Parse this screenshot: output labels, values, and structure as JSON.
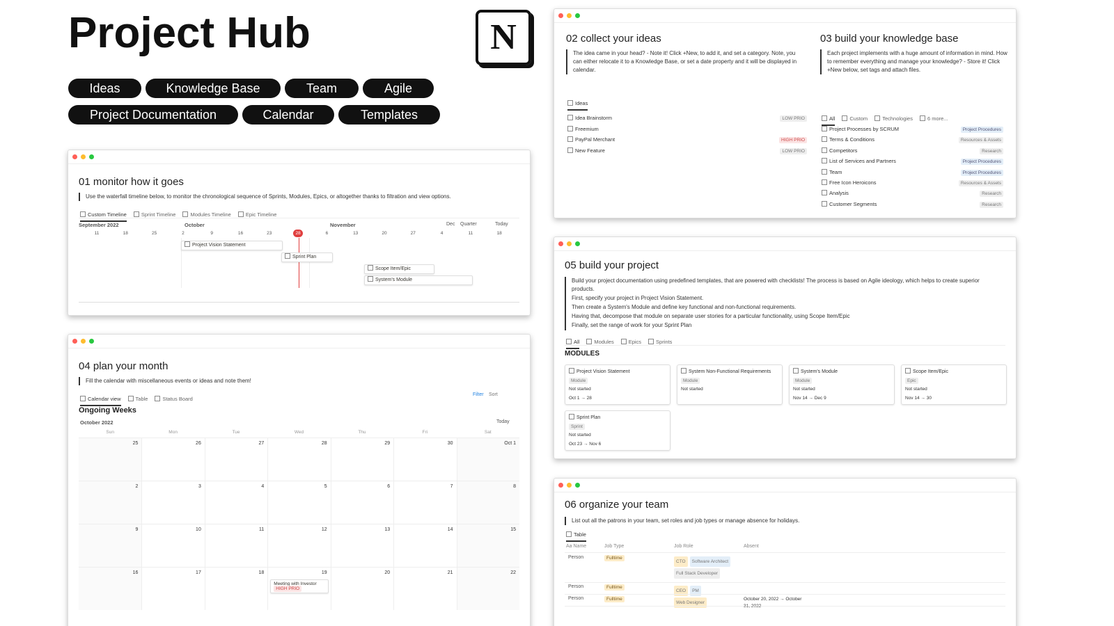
{
  "header": {
    "title": "Project Hub",
    "logo": "N",
    "nav": [
      "Ideas",
      "Knowledge Base",
      "Team",
      "Agile",
      "Project Documentation",
      "Calendar",
      "Templates"
    ]
  },
  "monitor": {
    "title": "01 monitor how it goes",
    "description": "Use the waterfall timeline below, to monitor the chronological sequence of Sprints, Modules, Epics, or altogether thanks to filtration and view options.",
    "tabs": [
      "Custom Timeline",
      "Sprint Timeline",
      "Modules Timeline",
      "Epic Timeline"
    ],
    "months": [
      "September 2022",
      "October",
      "November"
    ],
    "controls": [
      "Dec",
      "Quarter",
      "Today"
    ],
    "days": [
      "11",
      "18",
      "25",
      "2",
      "9",
      "16",
      "23",
      "28",
      "6",
      "13",
      "20",
      "27",
      "4",
      "11",
      "18"
    ],
    "items": [
      "Project Vision Statement",
      "Sprint Plan",
      "Scope Item/Epic",
      "System's Module"
    ]
  },
  "ideas": {
    "title": "02 collect your ideas",
    "description": "The idea came in your head? - Note it! Click +New, to add it, and set a category. Note, you can either relocate it to a Knowledge Base, or set a date property and it will be displayed in calendar.",
    "view": "Ideas",
    "rows": [
      {
        "name": "Idea Brainstorm",
        "tag": "LOW PRIO"
      },
      {
        "name": "Freemium"
      },
      {
        "name": "PayPal Merchant",
        "tag": "HIGH PRIO"
      },
      {
        "name": "New Feature",
        "tag": "LOW PRIO"
      }
    ]
  },
  "knowledge": {
    "title": "03 build your knowledge base",
    "description": "Each project implements with a huge amount of information in mind. How to remember everything and manage your knowledge? - Store it! Click +New below, set tags and attach files.",
    "tabs": [
      "All",
      "Custom",
      "Technologies",
      "6 more..."
    ],
    "rows": [
      {
        "name": "Project Processes by SCRUM",
        "tag": "Project Procedures"
      },
      {
        "name": "Terms & Conditions",
        "tag": "Resources & Assets"
      },
      {
        "name": "Competitors",
        "tag": "Research"
      },
      {
        "name": "List of Services and Partners",
        "tag": "Project Procedures"
      },
      {
        "name": "Team",
        "tag": "Project Procedures"
      },
      {
        "name": "Free Icon Heroicons",
        "tag": "Resources & Assets"
      },
      {
        "name": "Analysis",
        "tag": "Research"
      },
      {
        "name": "Customer Segments",
        "tag": "Research"
      }
    ]
  },
  "calendar": {
    "title": "04 plan your month",
    "description": "Fill the calendar with miscellaneous events or ideas and note them!",
    "tabs": [
      "Calendar view",
      "Table",
      "Status Board"
    ],
    "tools": [
      "Filter",
      "Sort"
    ],
    "heading": "Ongoing Weeks",
    "month": "October 2022",
    "today": "Today",
    "weekdays": [
      "Sun",
      "Mon",
      "Tue",
      "Wed",
      "Thu",
      "Fri",
      "Sat"
    ],
    "weeks": [
      [
        "25",
        "26",
        "27",
        "28",
        "29",
        "30",
        "Oct 1"
      ],
      [
        "2",
        "3",
        "4",
        "5",
        "6",
        "7",
        "8"
      ],
      [
        "9",
        "10",
        "11",
        "12",
        "13",
        "14",
        "15"
      ],
      [
        "16",
        "17",
        "18",
        {
          "day": "19",
          "event": "Meeting with Investor",
          "tag": "HIGH PRIO"
        },
        "20",
        "21",
        "22"
      ]
    ]
  },
  "build": {
    "title": "05 build your project",
    "paragraphs": [
      "Build your project documentation using predefined templates, that are powered with checklists! The process is based on Agile ideology, which helps to create superior products.",
      "First, specify your project in Project Vision Statement.",
      "Then create a System's Module and define key functional and non-functional requirements.",
      "Having that, decompose that module on separate user stories for a particular functionality, using Scope Item/Epic",
      "Finally, set the range of work for your Sprint Plan"
    ],
    "tabs": [
      "All",
      "Modules",
      "Epics",
      "Sprints"
    ],
    "section": "MODULES",
    "cards": [
      {
        "title": "Project Vision Statement",
        "type": "Module",
        "status": "Not started",
        "dates": "Oct 1 → 28"
      },
      {
        "title": "System Non-Functional Requirements",
        "type": "Module",
        "status": "Not started"
      },
      {
        "title": "System's Module",
        "type": "Module",
        "status": "Not started",
        "dates": "Nov 14 → Dec 9"
      },
      {
        "title": "Scope Item/Epic",
        "type": "Epic",
        "status": "Not started",
        "dates": "Nov 14 → 30"
      },
      {
        "title": "Sprint Plan",
        "type": "Sprint",
        "status": "Not started",
        "dates": "Oct 23 → Nov 6"
      }
    ]
  },
  "team": {
    "title": "06 organize your team",
    "description": "List out all the patrons in your team, set roles and job types or manage absence for holidays.",
    "tab": "Table",
    "columns": [
      "Aa Name",
      "Job Type",
      "Job Role",
      "Absent"
    ],
    "rows": [
      {
        "name": "Person",
        "job_type": "Fulltime",
        "roles": [
          "CTO",
          "Software Architect",
          "Full Stack Developer"
        ]
      },
      {
        "name": "Person",
        "job_type": "Fulltime",
        "roles": [
          "CEO",
          "PM"
        ]
      },
      {
        "name": "Person",
        "job_type": "Fulltime",
        "roles": [
          "Web Designer"
        ],
        "absent": "October 20, 2022 → October 31, 2022"
      }
    ]
  }
}
